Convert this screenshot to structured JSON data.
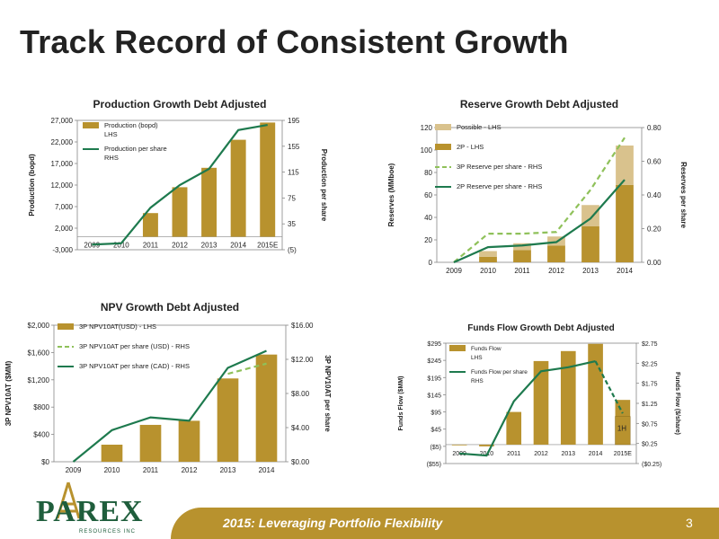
{
  "page": {
    "title": "Track Record of Consistent Growth",
    "footer": "2015: Leveraging Portfolio Flexibility",
    "page_number": "3",
    "logo": {
      "name": "PAREX",
      "sub": "RESOURCES INC"
    }
  },
  "colors": {
    "bar": "#b8922e",
    "bar_light": "#d9c28d",
    "line": "#1e7a4e",
    "dashed": "#8fc15a",
    "footer": "#b8922e"
  },
  "chart_data": [
    {
      "id": "production",
      "type": "bar",
      "title": "Production Growth Debt Adjusted",
      "ylabel": "Production (bopd)",
      "y2label": "Production per share",
      "categories": [
        "2009",
        "2010",
        "2011",
        "2012",
        "2013",
        "2014",
        "2015E"
      ],
      "ylim": [
        -3000,
        27000
      ],
      "yticks": [
        -3000,
        2000,
        7000,
        12000,
        17000,
        22000,
        27000
      ],
      "ytick_labels": [
        "-3,000",
        "2,000",
        "7,000",
        "12,000",
        "17,000",
        "22,000",
        "27,000"
      ],
      "y2lim": [
        -5,
        195
      ],
      "y2ticks": [
        -5,
        35,
        75,
        115,
        155,
        195
      ],
      "y2tick_labels": [
        "(5)",
        "35",
        "75",
        "115",
        "155",
        "195"
      ],
      "legend_placement": "top-left",
      "series": [
        {
          "name": "Production (bopd) LHS",
          "legend": [
            "Production (bopd)",
            "LHS"
          ],
          "kind": "bar",
          "axis": "left",
          "values": [
            0,
            0,
            5500,
            11500,
            16000,
            22500,
            26500
          ]
        },
        {
          "name": "Production per share RHS",
          "legend": [
            "Production per share",
            "RHS"
          ],
          "kind": "line",
          "axis": "right",
          "values": [
            3,
            5,
            60,
            95,
            120,
            180,
            188
          ]
        }
      ]
    },
    {
      "id": "reserve",
      "type": "bar",
      "title": "Reserve Growth Debt Adjusted",
      "ylabel": "Reserves (MMboe)",
      "y2label": "Reserves per share",
      "categories": [
        "2009",
        "2010",
        "2011",
        "2012",
        "2013",
        "2014"
      ],
      "ylim": [
        0,
        120
      ],
      "yticks": [
        0,
        20,
        40,
        60,
        80,
        100,
        120
      ],
      "ytick_labels": [
        "0",
        "20",
        "40",
        "60",
        "80",
        "100",
        "120"
      ],
      "y2lim": [
        0,
        0.8
      ],
      "y2ticks": [
        0,
        0.2,
        0.4,
        0.6,
        0.8
      ],
      "y2tick_labels": [
        "0.00",
        "0.20",
        "0.40",
        "0.60",
        "0.80"
      ],
      "legend_placement": "top-left",
      "series": [
        {
          "name": "2P - LHS",
          "kind": "bar_stack_base",
          "axis": "left",
          "values": [
            0,
            5,
            11,
            15,
            32,
            69
          ]
        },
        {
          "name": "Possible - LHS",
          "kind": "bar_stack_top",
          "axis": "left",
          "values": [
            0,
            5,
            6,
            8,
            19,
            35
          ]
        },
        {
          "name": "3P Reserve per share - RHS",
          "kind": "dashed_line",
          "axis": "right",
          "values": [
            0,
            0.17,
            0.17,
            0.18,
            0.43,
            0.74
          ]
        },
        {
          "name": "2P Reserve per share - RHS",
          "kind": "line",
          "axis": "right",
          "values": [
            0,
            0.09,
            0.1,
            0.12,
            0.26,
            0.49
          ]
        }
      ]
    },
    {
      "id": "npv",
      "type": "bar",
      "title": "NPV Growth Debt Adjusted",
      "ylabel": "3P NPV10AT ($MM)",
      "y2label": "3P NPV10AT per share",
      "categories": [
        "2009",
        "2010",
        "2011",
        "2012",
        "2013",
        "2014"
      ],
      "ylim": [
        0,
        2000
      ],
      "yticks": [
        0,
        400,
        800,
        1200,
        1600,
        2000
      ],
      "ytick_labels": [
        "$0",
        "$400",
        "$800",
        "$1,200",
        "$1,600",
        "$2,000"
      ],
      "y2lim": [
        0,
        16
      ],
      "y2ticks": [
        0,
        4,
        8,
        12,
        16
      ],
      "y2tick_labels": [
        "$0.00",
        "$4.00",
        "$8.00",
        "$12.00",
        "$16.00"
      ],
      "legend_placement": "top-left",
      "series": [
        {
          "name": "3P NPV10AT(USD) - LHS",
          "kind": "bar",
          "axis": "left",
          "values": [
            0,
            250,
            540,
            600,
            1220,
            1570
          ]
        },
        {
          "name": "3P NPV10AT per share (USD) - RHS",
          "kind": "dashed_line",
          "axis": "right",
          "values": [
            null,
            null,
            null,
            null,
            10.3,
            11.5
          ]
        },
        {
          "name": "3P NPV10AT per share (CAD) - RHS",
          "kind": "line",
          "axis": "right",
          "values": [
            0,
            3.7,
            5.2,
            4.8,
            11,
            13
          ]
        }
      ]
    },
    {
      "id": "fundsflow",
      "type": "bar",
      "title": "Funds Flow Growth Debt Adjusted",
      "ylabel": "Funds Flow ($MM)",
      "y2label": "Funds Flow ($/share)",
      "categories": [
        "2009",
        "2010",
        "2011",
        "2012",
        "2013",
        "2014",
        "2015E"
      ],
      "ylim": [
        -55,
        295
      ],
      "yticks": [
        -55,
        -5,
        45,
        95,
        145,
        195,
        245,
        295
      ],
      "ytick_labels": [
        "($55)",
        "($5)",
        "$45",
        "$95",
        "$145",
        "$195",
        "$245",
        "$295"
      ],
      "y2lim": [
        -0.25,
        2.75
      ],
      "y2ticks": [
        -0.25,
        0.25,
        0.75,
        1.25,
        1.75,
        2.25,
        2.75
      ],
      "y2tick_labels": [
        "($0.25)",
        "$0.25",
        "$0.75",
        "$1.25",
        "$1.75",
        "$2.25",
        "$2.75"
      ],
      "legend_placement": "top-left",
      "annotation": "1H",
      "series": [
        {
          "name": "Funds Flow LHS",
          "legend": [
            "Funds Flow",
            "LHS"
          ],
          "kind": "bar",
          "axis": "left",
          "values": [
            -2,
            -5,
            95,
            243,
            272,
            293,
            130
          ],
          "inner_values": [
            null,
            null,
            null,
            null,
            null,
            null,
            82
          ]
        },
        {
          "name": "Funds Flow per share RHS",
          "legend": [
            "Funds Flow per share",
            "RHS"
          ],
          "kind": "line_then_dashed",
          "axis": "right",
          "values": [
            0,
            -0.05,
            1.3,
            2.05,
            2.15,
            2.3,
            1.0
          ]
        }
      ]
    }
  ]
}
